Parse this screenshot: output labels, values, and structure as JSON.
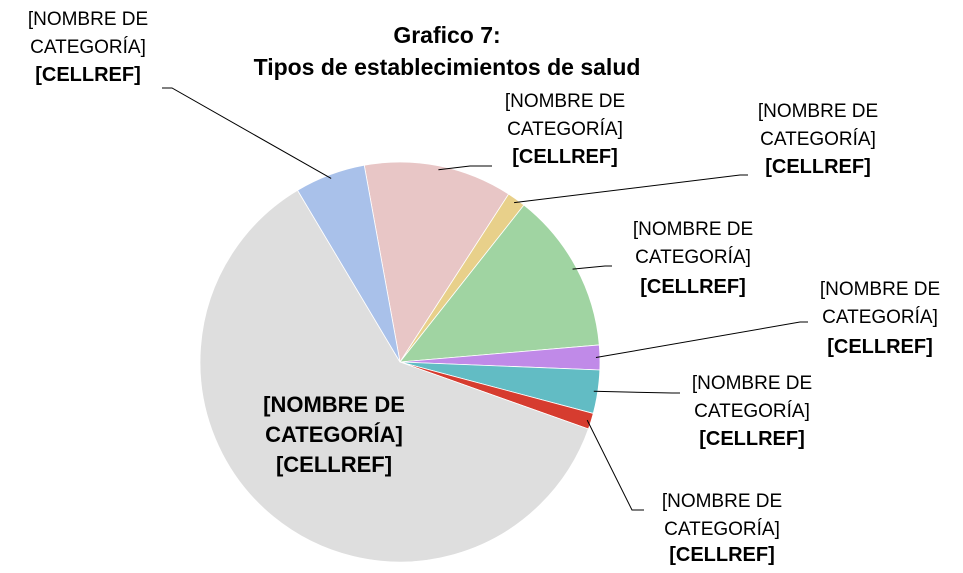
{
  "chart_data": {
    "type": "pie",
    "title": "Grafico 7:",
    "subtitle": "Tipos de establecimientos de salud",
    "categories": [
      "[NOMBRE DE CATEGORÍA]",
      "[NOMBRE DE CATEGORÍA]",
      "[NOMBRE DE CATEGORÍA]",
      "[NOMBRE DE CATEGORÍA]",
      "[NOMBRE DE CATEGORÍA]",
      "[NOMBRE DE CATEGORÍA]",
      "[NOMBRE DE CATEGORÍA]",
      "[NOMBRE DE CATEGORÍA]"
    ],
    "values": [
      12,
      1.5,
      13,
      2,
      3.5,
      1.3,
      61,
      5.7
    ],
    "value_labels": [
      "[CELLREF]",
      "[CELLREF]",
      "[CELLREF]",
      "[CELLREF]",
      "[CELLREF]",
      "[CELLREF]",
      "[CELLREF]",
      "[CELLREF]"
    ],
    "colors": [
      "#e8c6c6",
      "#e8d08a",
      "#a0d4a2",
      "#c08ae8",
      "#62bcc4",
      "#d63c2f",
      "#dedede",
      "#a9c1ea"
    ]
  }
}
